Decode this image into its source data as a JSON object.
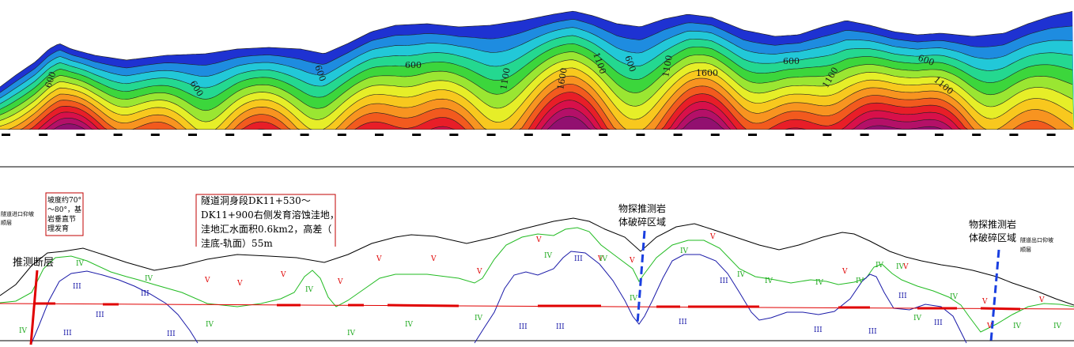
{
  "colors": {
    "contour_low": "#1428c8",
    "contour_high": "#9a1070",
    "surface_line": "#000000",
    "green_boundary": "#22bb22",
    "blue_boundary": "#1a1aa8",
    "tunnel_line": "#e00000",
    "fault_line": "#e00000",
    "fracture_line": "#1a3fe0",
    "grade_v": "#e00000",
    "grade_iv": "#22aa22",
    "grade_iii": "#1a1aa8"
  },
  "resistivity_section": {
    "contour_labels": [
      "600",
      "600",
      "600",
      "600",
      "1100",
      "1600",
      "1100",
      "600",
      "1100",
      "1600",
      "600",
      "1100",
      "600",
      "1100"
    ]
  },
  "geology_section": {
    "left_portal_note": [
      "隧道进口仰坡",
      "顺层"
    ],
    "right_portal_note": [
      "隧道出口仰坡",
      "顺层"
    ],
    "slope_note": [
      "坡度约70°",
      "～80°，基",
      "岩垂直节",
      "理发育"
    ],
    "karst_note": [
      "隧道洞身段DK11+530～",
      "DK11+900右侧发育溶蚀洼地，",
      "洼地汇水面积0.6km2，高差（",
      "洼底-轨面）55m"
    ],
    "fault_label": "推测断层",
    "fracture_zone_1": [
      "物探推测岩",
      "体破碎区域"
    ],
    "fracture_zone_2": [
      "物探推测岩",
      "体破碎区域"
    ],
    "grade_labels": {
      "v": "V",
      "iv": "IV",
      "iii": "III"
    }
  }
}
